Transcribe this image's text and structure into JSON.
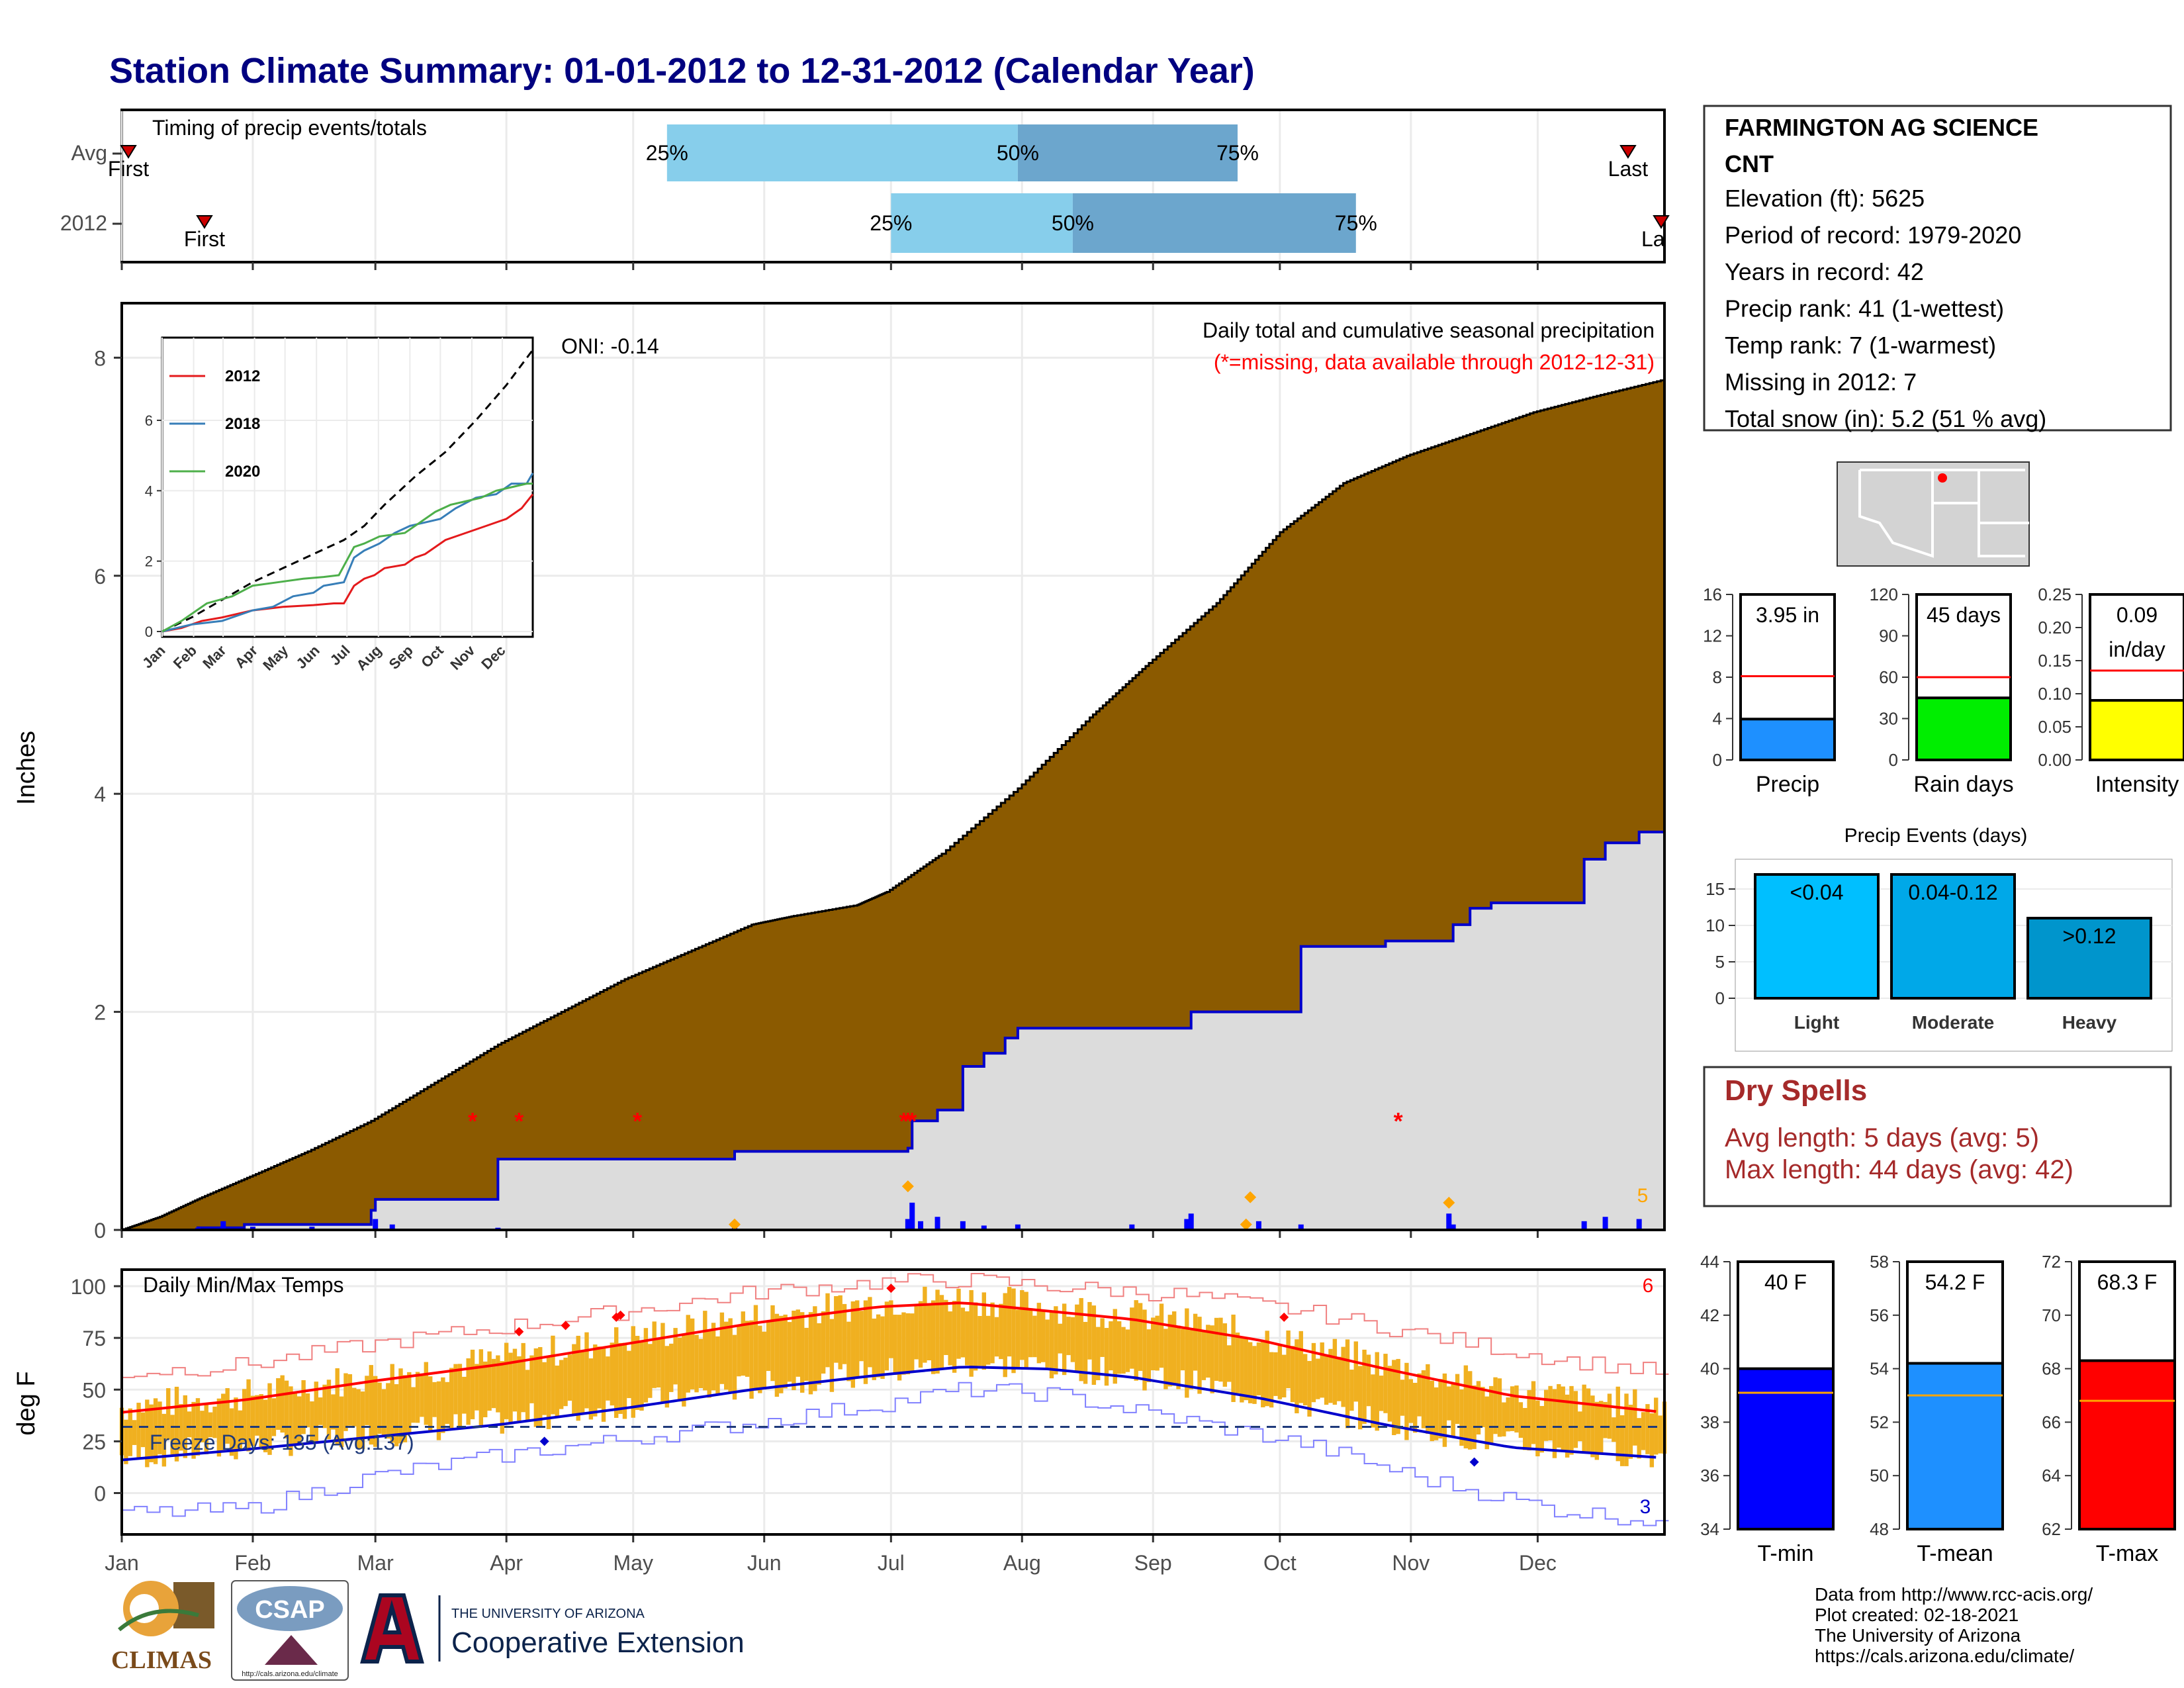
{
  "title": "Station Climate Summary: 01-01-2012 to 12-31-2012 (Calendar Year)",
  "station": {
    "name_line1": "FARMINGTON AG SCIENCE",
    "name_line2": "CNT",
    "lines": [
      "Elevation (ft): 5625",
      "Period of record: 1979-2020",
      "Years in record: 42",
      "Precip rank: 41 (1-wettest)",
      "Temp rank: 7 (1-warmest)",
      "Missing in 2012: 7",
      "Total snow (in): 5.2 (51 % avg)"
    ]
  },
  "timing": {
    "label": "Timing of precip events/totals",
    "rows": [
      "Avg",
      "2012"
    ],
    "pct_labels": [
      "25%",
      "50%",
      "75%"
    ],
    "first_label": "First",
    "last_label": "Last",
    "last_label_cut": "La",
    "avg": {
      "first_doy": 1,
      "p25": 130,
      "p50": 213,
      "p75": 265,
      "last_doy": 358
    },
    "y2012": {
      "first_doy": 19,
      "p25": 183,
      "p50": 226,
      "p75": 293,
      "last_doy": 366
    }
  },
  "precip": {
    "ylabel": "Inches",
    "ylim": [
      0,
      8.5
    ],
    "yticks": [
      "0",
      "2",
      "4",
      "6",
      "8"
    ],
    "note1": "Daily total and cumulative seasonal precipitation",
    "note2": "(*=missing, data available through 2012-12-31)",
    "oni": "ONI: -0.14",
    "corner_count": "5",
    "avg_cumulative": {
      "doy": [
        1,
        10,
        20,
        32,
        45,
        60,
        75,
        90,
        105,
        120,
        135,
        150,
        160,
        175,
        182,
        195,
        213,
        230,
        244,
        260,
        275,
        290,
        305,
        320,
        335,
        350,
        366
      ],
      "inches": [
        0,
        0.12,
        0.3,
        0.5,
        0.72,
        1.0,
        1.35,
        1.7,
        2.0,
        2.3,
        2.55,
        2.8,
        2.88,
        2.98,
        3.1,
        3.45,
        4.05,
        4.7,
        5.2,
        5.75,
        6.4,
        6.85,
        7.1,
        7.3,
        7.5,
        7.65,
        7.8
      ]
    },
    "cumulative_2012": {
      "doy": [
        1,
        19,
        30,
        60,
        61,
        90,
        145,
        146,
        187,
        188,
        194,
        200,
        205,
        210,
        213,
        240,
        253,
        254,
        270,
        280,
        300,
        315,
        316,
        320,
        325,
        346,
        347,
        352,
        360,
        366
      ],
      "inches": [
        0,
        0.02,
        0.05,
        0.18,
        0.28,
        0.65,
        0.65,
        0.72,
        0.75,
        1.0,
        1.1,
        1.5,
        1.62,
        1.76,
        1.85,
        1.85,
        1.85,
        2.0,
        2.0,
        2.6,
        2.65,
        2.65,
        2.8,
        2.95,
        3.0,
        3.0,
        3.4,
        3.55,
        3.65,
        3.95
      ]
    },
    "daily_bars": {
      "doy": [
        19,
        25,
        32,
        46,
        61,
        65,
        90,
        146,
        187,
        188,
        190,
        194,
        200,
        205,
        213,
        240,
        253,
        254,
        270,
        280,
        315,
        316,
        347,
        352,
        360
      ],
      "inches": [
        0.02,
        0.08,
        0.03,
        0.03,
        0.1,
        0.05,
        0.02,
        0.04,
        0.1,
        0.25,
        0.08,
        0.12,
        0.08,
        0.04,
        0.05,
        0.05,
        0.1,
        0.15,
        0.08,
        0.05,
        0.15,
        0.05,
        0.08,
        0.12,
        0.1
      ]
    },
    "diamonds": {
      "doy": [
        146,
        187,
        267,
        268,
        315
      ],
      "inches": [
        0.05,
        0.4,
        0.05,
        0.3,
        0.25
      ]
    },
    "missing_days": [
      84,
      95,
      123,
      186,
      187,
      188,
      303
    ]
  },
  "inset": {
    "yticks": [
      "0",
      "2",
      "4",
      "6"
    ],
    "months": [
      "Jan",
      "Feb",
      "Mar",
      "Apr",
      "May",
      "Jun",
      "Jul",
      "Aug",
      "Sep",
      "Oct",
      "Nov",
      "Dec"
    ],
    "legend": [
      {
        "name": "2012",
        "color": "#e41a1c"
      },
      {
        "name": "2018",
        "color": "#377eb8"
      },
      {
        "name": "2020",
        "color": "#4daf4a"
      }
    ],
    "series": [
      {
        "doy": [
          1,
          20,
          40,
          60,
          90,
          120,
          150,
          170,
          180,
          190,
          200,
          210,
          220,
          240,
          250,
          260,
          270,
          280,
          300,
          320,
          340,
          355,
          366
        ],
        "inches": [
          0,
          0.1,
          0.3,
          0.4,
          0.6,
          0.7,
          0.75,
          0.8,
          0.8,
          1.3,
          1.5,
          1.6,
          1.8,
          1.9,
          2.1,
          2.2,
          2.4,
          2.6,
          2.8,
          3.0,
          3.2,
          3.5,
          3.9
        ]
      },
      {
        "doy": [
          1,
          30,
          60,
          90,
          110,
          130,
          150,
          160,
          170,
          180,
          190,
          200,
          215,
          230,
          245,
          260,
          275,
          290,
          310,
          330,
          345,
          360,
          366
        ],
        "inches": [
          0,
          0.2,
          0.3,
          0.6,
          0.7,
          1.0,
          1.1,
          1.3,
          1.35,
          1.4,
          2.1,
          2.3,
          2.5,
          2.8,
          3.0,
          3.1,
          3.2,
          3.5,
          3.8,
          3.9,
          4.2,
          4.2,
          4.5
        ]
      },
      {
        "doy": [
          1,
          20,
          45,
          70,
          90,
          115,
          140,
          160,
          175,
          190,
          200,
          215,
          240,
          255,
          270,
          285,
          300,
          315,
          330,
          345,
          360,
          366
        ],
        "inches": [
          0,
          0.3,
          0.8,
          1.0,
          1.3,
          1.4,
          1.5,
          1.55,
          1.6,
          2.4,
          2.5,
          2.7,
          2.8,
          3.1,
          3.4,
          3.6,
          3.7,
          3.8,
          4.0,
          4.1,
          4.2,
          4.2
        ]
      }
    ],
    "avg": {
      "doy": [
        1,
        30,
        60,
        90,
        120,
        150,
        180,
        200,
        220,
        250,
        280,
        310,
        340,
        366
      ],
      "inches": [
        0,
        0.4,
        0.9,
        1.4,
        1.8,
        2.2,
        2.6,
        3.0,
        3.6,
        4.4,
        5.1,
        6.0,
        7.0,
        8.0
      ]
    }
  },
  "temps": {
    "ylabel": "deg F",
    "label": "Daily Min/Max Temps",
    "freeze_label": "Freeze Days: 135 (Avg:137)",
    "freeze_line": 32,
    "ylim": [
      -20,
      108
    ],
    "yticks": [
      "0",
      "25",
      "50",
      "75",
      "100"
    ],
    "count_max": "6",
    "count_min": "3",
    "normal_max": {
      "doy": [
        1,
        30,
        60,
        90,
        120,
        150,
        180,
        200,
        210,
        240,
        270,
        300,
        330,
        366
      ],
      "degf": [
        39,
        45,
        54,
        62,
        72,
        82,
        90,
        92,
        90,
        84,
        74,
        60,
        47,
        39
      ]
    },
    "normal_min": {
      "doy": [
        1,
        30,
        60,
        90,
        120,
        150,
        180,
        200,
        220,
        240,
        270,
        300,
        330,
        366
      ],
      "degf": [
        16,
        21,
        27,
        33,
        41,
        50,
        57,
        61,
        60,
        56,
        46,
        33,
        22,
        17
      ]
    },
    "record_max": {
      "doy": [
        1,
        30,
        60,
        90,
        120,
        150,
        180,
        200,
        220,
        250,
        280,
        310,
        340,
        366
      ],
      "degf": [
        58,
        62,
        72,
        80,
        88,
        97,
        102,
        103,
        100,
        96,
        88,
        76,
        65,
        58
      ]
    },
    "record_min": {
      "doy": [
        1,
        30,
        60,
        90,
        120,
        150,
        180,
        200,
        220,
        250,
        280,
        310,
        340,
        366
      ],
      "degf": [
        -10,
        -8,
        8,
        18,
        26,
        34,
        43,
        50,
        48,
        36,
        24,
        6,
        -8,
        -14
      ]
    },
    "hi_marks": {
      "doy": [
        95,
        106,
        118,
        119,
        183,
        276
      ],
      "degf": [
        78,
        81,
        85,
        86,
        99,
        85
      ]
    },
    "lo_marks": {
      "doy": [
        101,
        321
      ],
      "degf": [
        25,
        15
      ]
    },
    "month_labels": [
      "Jan",
      "Feb",
      "Mar",
      "Apr",
      "May",
      "Jun",
      "Jul",
      "Aug",
      "Sep",
      "Oct",
      "Nov",
      "Dec"
    ]
  },
  "small_precip": [
    {
      "label": "Precip",
      "value_text": "3.95 in",
      "value": 3.95,
      "avg": 8.1,
      "ylim": [
        0,
        16
      ],
      "yticks": [
        "0",
        "4",
        "8",
        "12",
        "16"
      ],
      "color": "#1e90ff"
    },
    {
      "label": "Rain days",
      "value_text": "45 days",
      "value": 45,
      "avg": 60,
      "ylim": [
        0,
        120
      ],
      "yticks": [
        "0",
        "30",
        "60",
        "90",
        "120"
      ],
      "color": "#00ee00"
    },
    {
      "label": "Intensity",
      "value_text": "0.09",
      "value_text2": "in/day",
      "value": 0.09,
      "avg": 0.135,
      "ylim": [
        0,
        0.25
      ],
      "yticks": [
        "0.00",
        "0.05",
        "0.10",
        "0.15",
        "0.20",
        "0.25"
      ],
      "color": "#ffff00"
    }
  ],
  "events": {
    "title": "Precip Events (days)",
    "categories": [
      "Light",
      "Moderate",
      "Heavy"
    ],
    "values": [
      17,
      17,
      11
    ],
    "bar_labels": [
      "<0.04",
      "0.04-0.12",
      ">0.12"
    ],
    "colors": [
      "#00bfff",
      "#00a8e8",
      "#0095cc"
    ],
    "ylim": [
      0,
      18
    ],
    "yticks": [
      "0",
      "5",
      "10",
      "15"
    ]
  },
  "dry": {
    "title": "Dry Spells",
    "line1": "Avg length: 5 days (avg: 5)",
    "line2": "Max length: 44 days (avg: 42)",
    "color": "#a52a2a"
  },
  "small_temps": [
    {
      "label": "T-min",
      "value_text": "40 F",
      "value": 40,
      "avg": 39.1,
      "ylim": [
        34,
        44
      ],
      "yticks": [
        "34",
        "36",
        "38",
        "40",
        "42",
        "44"
      ],
      "color": "#0000ff"
    },
    {
      "label": "T-mean",
      "value_text": "54.2 F",
      "value": 54.2,
      "avg": 53,
      "ylim": [
        48,
        58
      ],
      "yticks": [
        "48",
        "50",
        "52",
        "54",
        "56",
        "58"
      ],
      "color": "#1e90ff"
    },
    {
      "label": "T-max",
      "value_text": "68.3 F",
      "value": 68.3,
      "avg": 66.8,
      "ylim": [
        62,
        72
      ],
      "yticks": [
        "62",
        "64",
        "66",
        "68",
        "70",
        "72"
      ],
      "color": "#ff0000"
    }
  ],
  "footer": {
    "credits": [
      "Data from http://www.rcc-acis.org/",
      "Plot created: 02-18-2021",
      "The University of Arizona",
      "https://cals.arizona.edu/climate/"
    ],
    "climas": "CLIMAS",
    "csap": "CSAP",
    "csap_url": "http://cals.arizona.edu/climate",
    "ua_small": "THE UNIVERSITY OF ARIZONA",
    "ua_big": "Cooperative Extension"
  },
  "colors": {
    "title": "#000080",
    "cum_fill": "#8b5a00",
    "avg_fill": "#dcdcdc",
    "bar_orange": "#f0b020",
    "p_light": "#87ceeb",
    "p_dark": "#6ca6cd"
  }
}
